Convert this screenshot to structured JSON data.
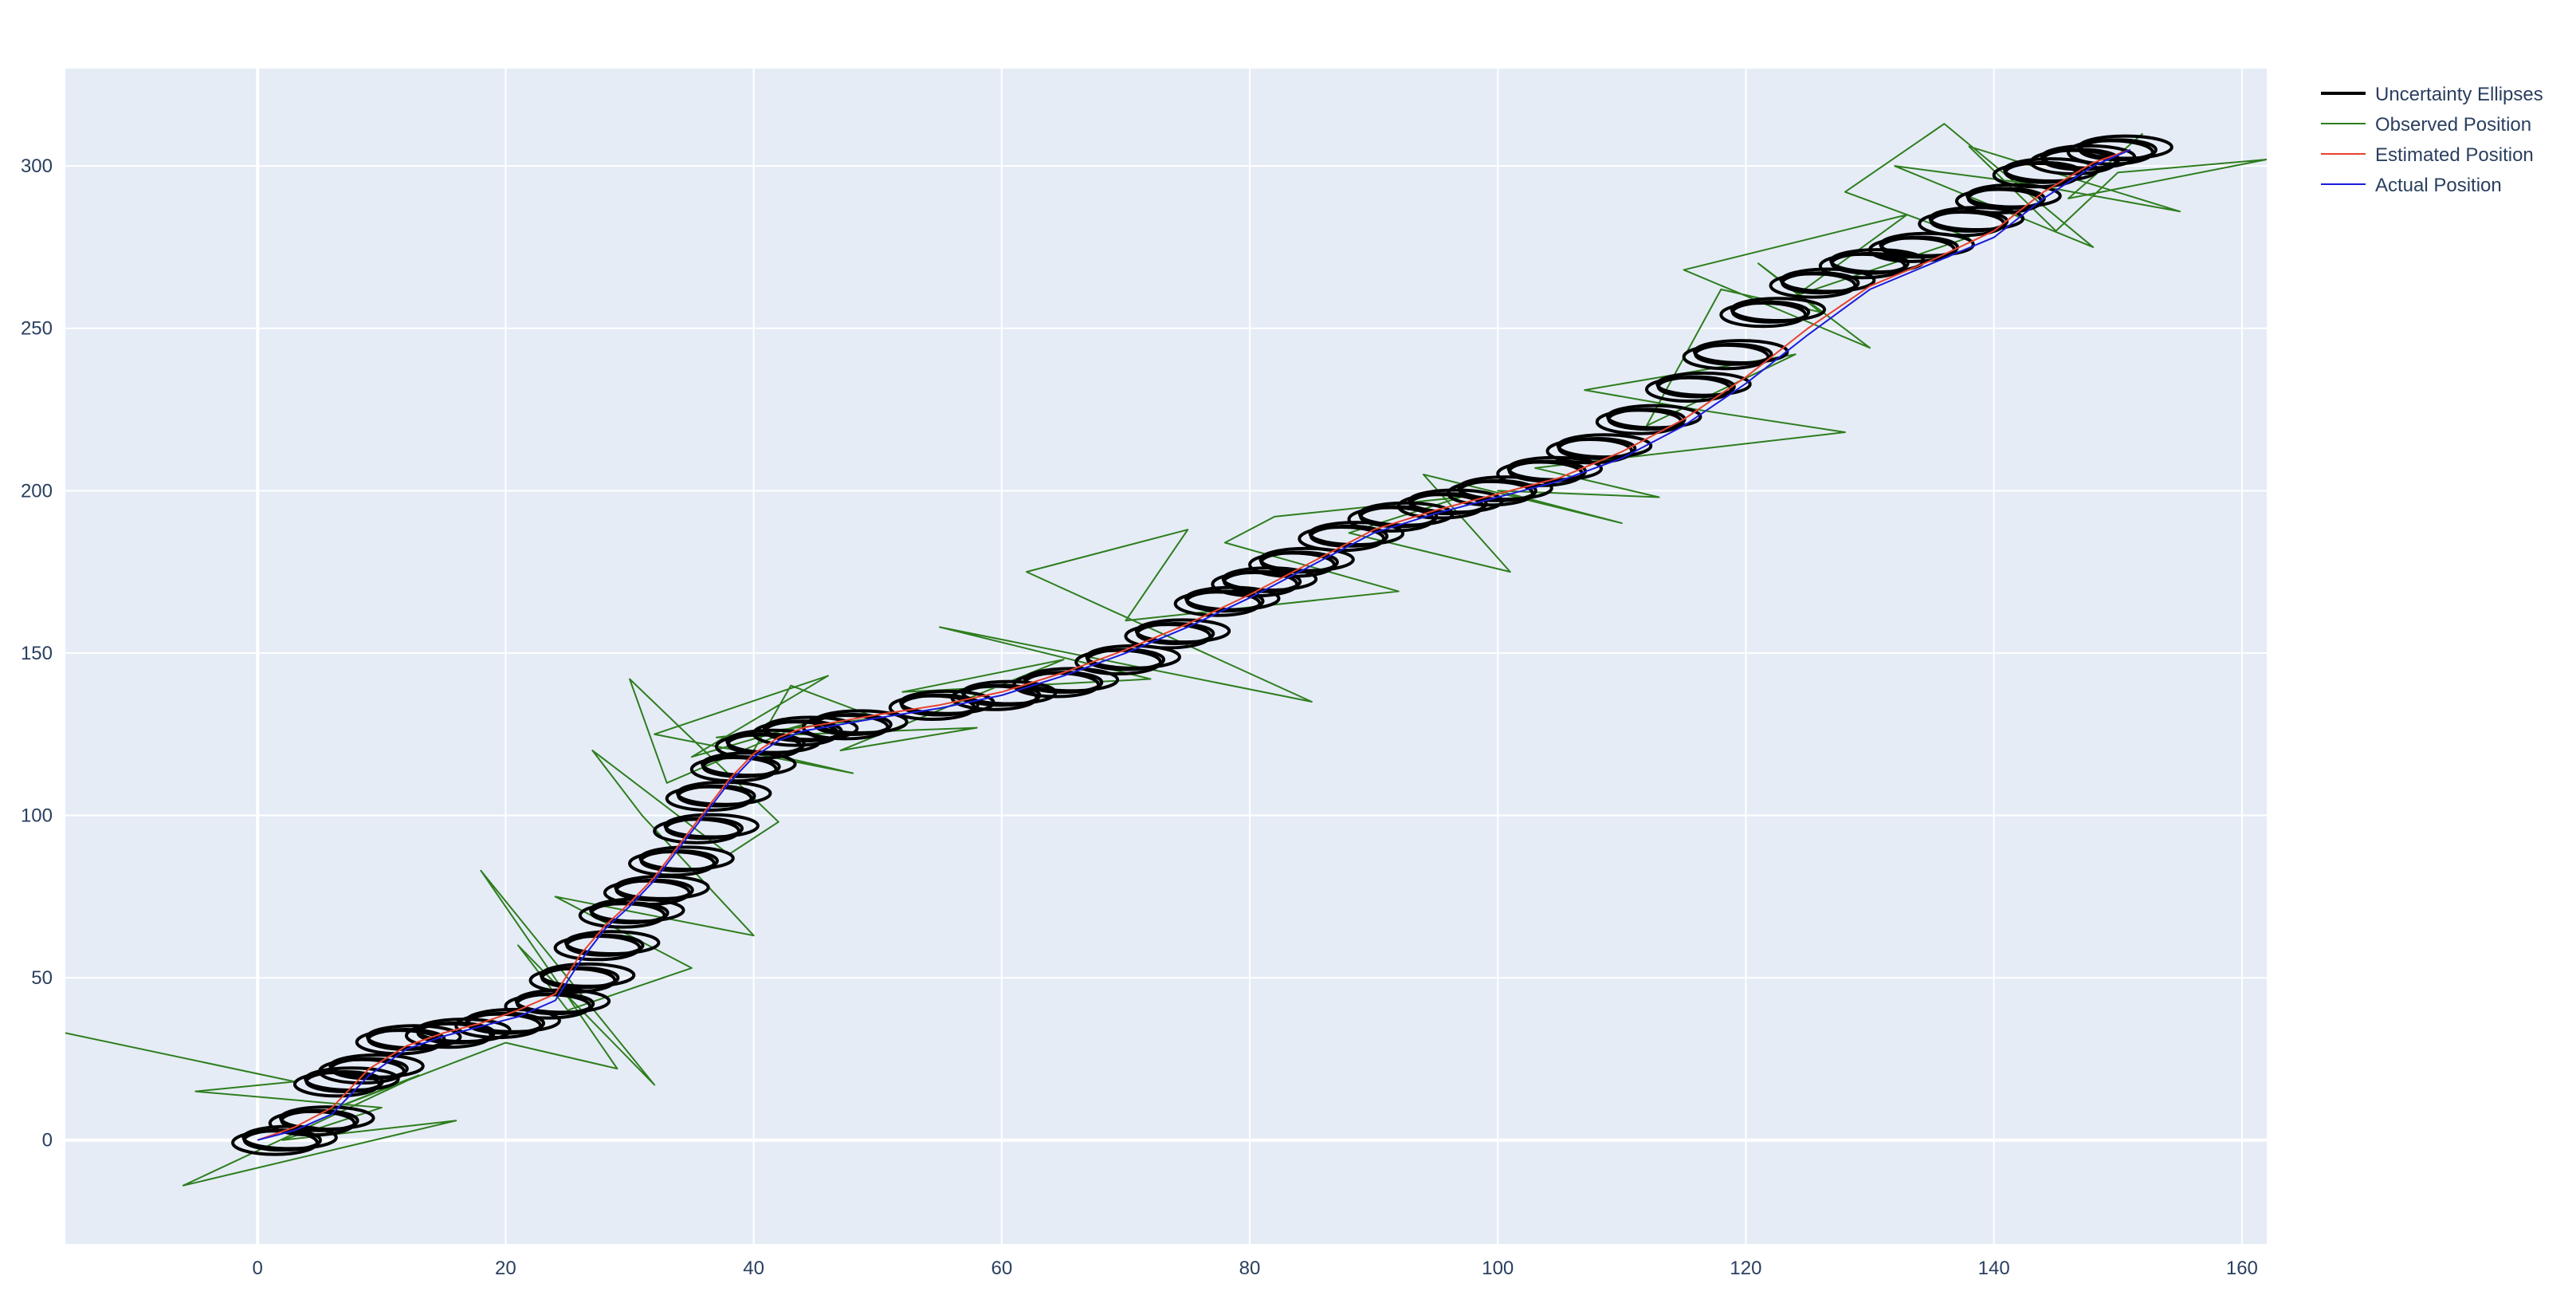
{
  "chart_data": {
    "type": "line",
    "title": "",
    "xlabel": "",
    "ylabel": "",
    "xlim": [
      -15.5,
      162
    ],
    "ylim": [
      -32,
      330
    ],
    "x_ticks": [
      0,
      20,
      40,
      60,
      80,
      100,
      120,
      140,
      160
    ],
    "y_ticks": [
      0,
      50,
      100,
      150,
      200,
      250,
      300
    ],
    "grid": true,
    "plot_background": "#e5ecf6",
    "legend": {
      "position": "top-right-outside",
      "entries": [
        {
          "name": "Uncertainty Ellipses",
          "color": "#000000"
        },
        {
          "name": "Observed Position",
          "color": "#2e7d1e"
        },
        {
          "name": "Estimated Position",
          "color": "#e8412f"
        },
        {
          "name": "Actual Position",
          "color": "#1a1adc"
        }
      ]
    },
    "series": [
      {
        "name": "Actual Position",
        "color": "#1a1adc",
        "x": [
          0,
          3,
          6,
          9,
          12,
          15,
          18,
          21,
          24,
          26,
          28,
          30,
          32,
          34,
          36,
          38,
          40,
          42,
          44,
          47,
          50,
          55,
          60,
          65,
          70,
          75,
          80,
          85,
          90,
          95,
          100,
          105,
          110,
          115,
          120,
          125,
          130,
          135,
          140,
          144,
          148,
          151
        ],
        "y": [
          0,
          3,
          8,
          20,
          28,
          32,
          35,
          38,
          43,
          55,
          65,
          72,
          80,
          90,
          100,
          110,
          118,
          123,
          126,
          128,
          130,
          133,
          137,
          143,
          150,
          158,
          167,
          177,
          187,
          193,
          198,
          203,
          210,
          220,
          233,
          248,
          262,
          270,
          278,
          290,
          300,
          305
        ]
      },
      {
        "name": "Estimated Position",
        "color": "#e8412f",
        "x": [
          0,
          3,
          6,
          9,
          12,
          15,
          18,
          21,
          24,
          26,
          28,
          30,
          32,
          34,
          36,
          38,
          40,
          42,
          44,
          47,
          50,
          55,
          60,
          65,
          70,
          75,
          80,
          85,
          90,
          95,
          100,
          105,
          110,
          115,
          120,
          125,
          130,
          135,
          140,
          144,
          148,
          151
        ],
        "y": [
          0,
          4,
          10,
          22,
          29,
          33,
          36,
          40,
          45,
          57,
          66,
          73,
          81,
          91,
          101,
          111,
          119,
          124,
          127,
          129,
          131,
          134,
          138,
          144,
          151,
          159,
          168,
          178,
          188,
          194,
          199,
          204,
          212,
          222,
          235,
          250,
          263,
          271,
          280,
          292,
          301,
          305
        ]
      },
      {
        "name": "Observed Position",
        "color": "#2e7d1e",
        "x": [
          -15.5,
          3,
          -5,
          10,
          2,
          16,
          -6,
          13,
          5,
          20,
          29,
          18,
          32,
          21,
          25,
          35,
          24,
          40,
          31,
          27,
          38,
          42,
          30,
          33,
          44,
          35,
          46,
          32,
          48,
          40,
          43,
          50,
          37,
          58,
          47,
          65,
          52,
          72,
          55,
          85,
          62,
          75,
          70,
          92,
          78,
          82,
          97,
          88,
          101,
          94,
          110,
          100,
          113,
          103,
          128,
          116,
          107,
          124,
          112,
          118,
          126,
          121,
          130,
          115,
          133,
          124,
          138,
          128,
          136,
          148,
          132,
          142,
          155,
          138,
          145,
          150,
          162,
          146,
          152
        ],
        "y": [
          33,
          18,
          15,
          10,
          0,
          6,
          -14,
          20,
          8,
          30,
          22,
          83,
          17,
          60,
          40,
          53,
          75,
          63,
          100,
          120,
          88,
          98,
          142,
          110,
          128,
          118,
          143,
          125,
          113,
          120,
          140,
          130,
          124,
          127,
          120,
          148,
          138,
          142,
          158,
          135,
          175,
          188,
          160,
          169,
          184,
          192,
          198,
          187,
          175,
          205,
          190,
          200,
          198,
          207,
          218,
          225,
          231,
          242,
          220,
          262,
          255,
          270,
          244,
          268,
          285,
          260,
          278,
          292,
          313,
          275,
          300,
          295,
          286,
          306,
          280,
          298,
          302,
          290,
          310
        ]
      }
    ],
    "ellipses": {
      "name": "Uncertainty Ellipses",
      "color": "#000000",
      "centers_x": [
        2,
        5,
        7,
        9,
        12,
        16,
        20,
        24,
        26,
        28,
        30,
        32,
        34,
        36,
        37,
        39,
        41,
        44,
        48,
        55,
        60,
        65,
        70,
        74,
        78,
        81,
        84,
        88,
        92,
        96,
        100,
        104,
        108,
        112,
        116,
        119,
        122,
        126,
        130,
        134,
        138,
        141,
        144,
        147,
        150
      ],
      "centers_y": [
        0,
        6,
        18,
        22,
        31,
        33,
        36,
        42,
        50,
        60,
        70,
        77,
        86,
        96,
        106,
        115,
        122,
        126,
        128,
        134,
        137,
        141,
        148,
        156,
        166,
        172,
        178,
        186,
        192,
        196,
        200,
        206,
        213,
        222,
        232,
        242,
        255,
        264,
        270,
        275,
        283,
        290,
        298,
        302,
        305
      ],
      "rx": 3.4,
      "ry": 3.6
    }
  }
}
